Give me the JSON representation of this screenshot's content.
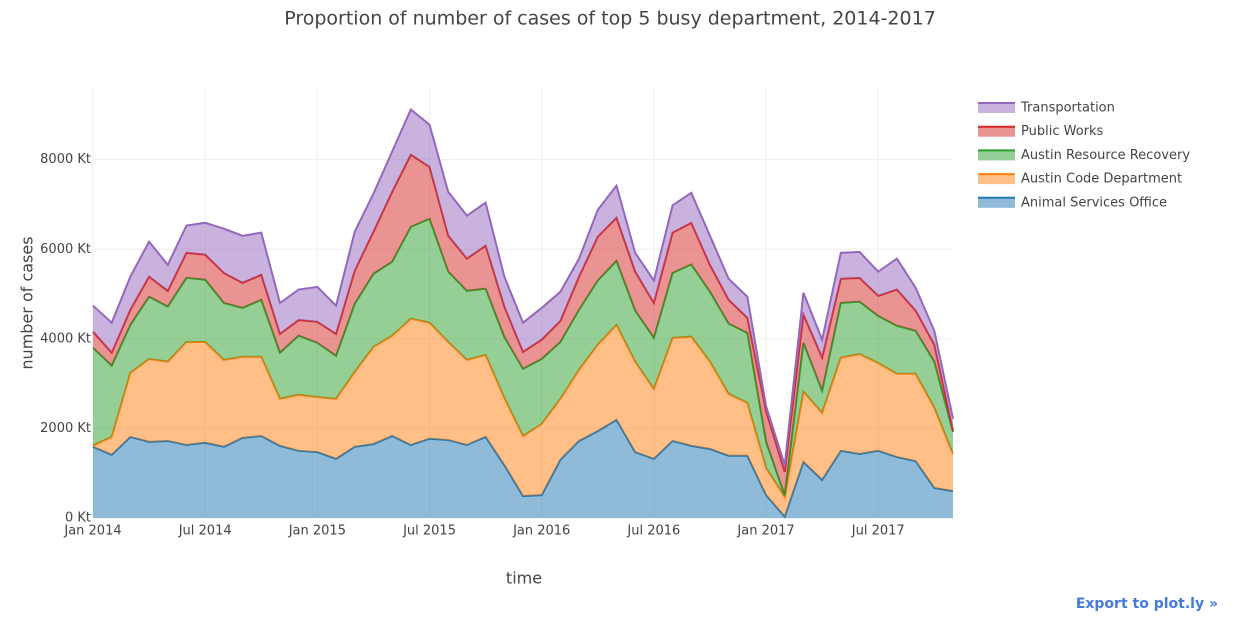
{
  "chart_data": {
    "type": "stacked_area",
    "title": "Proportion of number of cases of top 5 busy department, 2014-2017",
    "xlabel": "time",
    "ylabel": "number of cases",
    "x": [
      "2014-01",
      "2014-02",
      "2014-03",
      "2014-04",
      "2014-05",
      "2014-06",
      "2014-07",
      "2014-08",
      "2014-09",
      "2014-10",
      "2014-11",
      "2014-12",
      "2015-01",
      "2015-02",
      "2015-03",
      "2015-04",
      "2015-05",
      "2015-06",
      "2015-07",
      "2015-08",
      "2015-09",
      "2015-10",
      "2015-11",
      "2015-12",
      "2016-01",
      "2016-02",
      "2016-03",
      "2016-04",
      "2016-05",
      "2016-06",
      "2016-07",
      "2016-08",
      "2016-09",
      "2016-10",
      "2016-11",
      "2016-12",
      "2017-01",
      "2017-02",
      "2017-03",
      "2017-04",
      "2017-05",
      "2017-06",
      "2017-07",
      "2017-08",
      "2017-09",
      "2017-10",
      "2017-11"
    ],
    "series": [
      {
        "name": "Animal Services Office",
        "color": "#1f77b4",
        "values": [
          1590,
          1410,
          1810,
          1700,
          1720,
          1630,
          1680,
          1590,
          1790,
          1830,
          1610,
          1500,
          1470,
          1320,
          1590,
          1650,
          1830,
          1630,
          1770,
          1740,
          1630,
          1810,
          1180,
          490,
          510,
          1300,
          1720,
          1940,
          2190,
          1470,
          1320,
          1720,
          1610,
          1540,
          1390,
          1390,
          510,
          30,
          1250,
          850,
          1500,
          1430,
          1500,
          1360,
          1270,
          670,
          600
        ]
      },
      {
        "name": "Austin Code Department",
        "color": "#ff7f0e",
        "values": [
          30,
          400,
          1430,
          1850,
          1770,
          2300,
          2250,
          1940,
          1810,
          1770,
          1050,
          1250,
          1230,
          1340,
          1670,
          2170,
          2240,
          2820,
          2590,
          2190,
          1900,
          1830,
          1500,
          1340,
          1590,
          1360,
          1590,
          1930,
          2120,
          2020,
          1560,
          2300,
          2440,
          1950,
          1380,
          1180,
          610,
          440,
          1570,
          1500,
          2080,
          2230,
          1960,
          1860,
          1950,
          1790,
          830
        ]
      },
      {
        "name": "Austin Resource Recovery",
        "color": "#2ca02c",
        "values": [
          2180,
          1590,
          1070,
          1390,
          1230,
          1430,
          1390,
          1270,
          1090,
          1270,
          1030,
          1320,
          1210,
          960,
          1520,
          1630,
          1650,
          2050,
          2320,
          1570,
          1540,
          1480,
          1360,
          1500,
          1450,
          1270,
          1340,
          1430,
          1430,
          1140,
          1140,
          1450,
          1610,
          1560,
          1570,
          1560,
          580,
          30,
          1090,
          490,
          1220,
          1170,
          1050,
          1070,
          960,
          1030,
          490
        ]
      },
      {
        "name": "Public Works",
        "color": "#d62728",
        "values": [
          360,
          290,
          340,
          450,
          350,
          560,
          560,
          670,
          560,
          560,
          420,
          350,
          470,
          490,
          740,
          940,
          1560,
          1610,
          1160,
          800,
          720,
          960,
          680,
          380,
          430,
          470,
          740,
          980,
          960,
          870,
          780,
          900,
          930,
          600,
          530,
          340,
          690,
          530,
          630,
          740,
          540,
          530,
          450,
          810,
          450,
          380,
          30
        ]
      },
      {
        "name": "Transportation",
        "color": "#9467bd",
        "values": [
          580,
          670,
          740,
          780,
          580,
          610,
          710,
          990,
          1050,
          940,
          690,
          680,
          780,
          630,
          870,
          850,
          900,
          1010,
          940,
          980,
          960,
          960,
          670,
          650,
          710,
          650,
          400,
          600,
          720,
          420,
          500,
          610,
          670,
          650,
          470,
          470,
          110,
          150,
          490,
          400,
          580,
          580,
          540,
          690,
          510,
          310,
          270
        ]
      }
    ],
    "xlim": [
      "2014-01",
      "2017-11"
    ],
    "xticks": [
      {
        "value": "2014-01",
        "label": "Jan 2014"
      },
      {
        "value": "2014-07",
        "label": "Jul 2014"
      },
      {
        "value": "2015-01",
        "label": "Jan 2015"
      },
      {
        "value": "2015-07",
        "label": "Jul 2015"
      },
      {
        "value": "2016-01",
        "label": "Jan 2016"
      },
      {
        "value": "2016-07",
        "label": "Jul 2016"
      },
      {
        "value": "2017-01",
        "label": "Jan 2017"
      },
      {
        "value": "2017-07",
        "label": "Jul 2017"
      }
    ],
    "ylim": [
      0,
      9600
    ],
    "yticks": [
      {
        "value": 0,
        "label": "0 Kt"
      },
      {
        "value": 2000,
        "label": "2000 Kt"
      },
      {
        "value": 4000,
        "label": "4000 Kt"
      },
      {
        "value": 6000,
        "label": "6000 Kt"
      },
      {
        "value": 8000,
        "label": "8000 Kt"
      }
    ],
    "grid": true,
    "legend": "right",
    "fill_opacity": 0.5
  },
  "export_link": "Export to plot.ly »"
}
